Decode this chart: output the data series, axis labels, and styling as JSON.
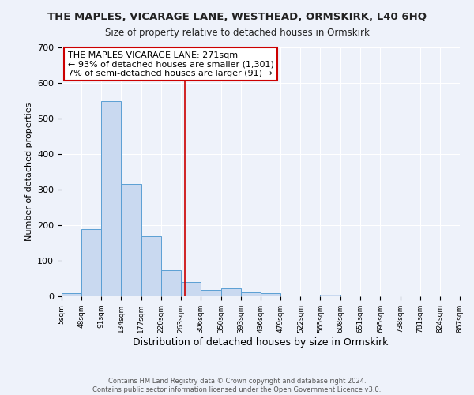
{
  "title": "THE MAPLES, VICARAGE LANE, WESTHEAD, ORMSKIRK, L40 6HQ",
  "subtitle": "Size of property relative to detached houses in Ormskirk",
  "xlabel": "Distribution of detached houses by size in Ormskirk",
  "ylabel": "Number of detached properties",
  "bin_edges": [
    5,
    48,
    91,
    134,
    177,
    220,
    263,
    306,
    350,
    393,
    436,
    479,
    522,
    565,
    608,
    651,
    695,
    738,
    781,
    824,
    867
  ],
  "bar_heights": [
    8,
    190,
    548,
    315,
    170,
    74,
    40,
    17,
    22,
    11,
    10,
    0,
    0,
    5,
    0,
    0,
    0,
    0,
    0,
    0
  ],
  "bar_color": "#c9d9f0",
  "bar_edge_color": "#5a9fd4",
  "property_line_x": 271,
  "property_line_color": "#cc0000",
  "annotation_title": "THE MAPLES VICARAGE LANE: 271sqm",
  "annotation_line1": "← 93% of detached houses are smaller (1,301)",
  "annotation_line2": "7% of semi-detached houses are larger (91) →",
  "annotation_box_color": "#ffffff",
  "annotation_box_edge_color": "#cc0000",
  "ylim": [
    0,
    700
  ],
  "yticks": [
    0,
    100,
    200,
    300,
    400,
    500,
    600,
    700
  ],
  "footer_line1": "Contains HM Land Registry data © Crown copyright and database right 2024.",
  "footer_line2": "Contains public sector information licensed under the Open Government Licence v3.0.",
  "background_color": "#eef2fa"
}
